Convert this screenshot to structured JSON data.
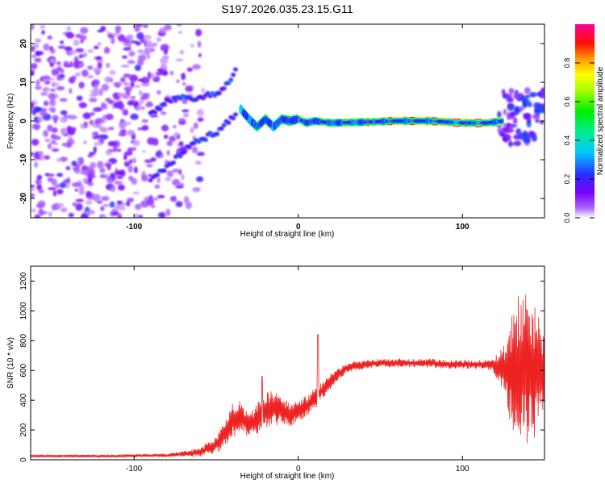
{
  "title": "S197.2026.035.23.15.G11",
  "colors": {
    "snr_line": "#ee2222",
    "axis": "#000000"
  },
  "chart_data": [
    {
      "type": "heatmap",
      "title": "S197.2026.035.23.15.G11",
      "xlabel": "Height of straight line (km)",
      "ylabel": "Frequency (Hz)",
      "xlim": [
        -163,
        150
      ],
      "ylim": [
        -25,
        25
      ],
      "xticks": [
        -100,
        0,
        100
      ],
      "yticks": [
        -20,
        -10,
        0,
        10,
        20
      ],
      "colorbar": {
        "label": "Normalized spectral amplitude",
        "range": [
          0,
          1
        ],
        "ticks": [
          0.0,
          0.2,
          0.4,
          0.6,
          0.8
        ],
        "colormap": [
          "#ffffff",
          "#8800ff",
          "#2222ff",
          "#00ddff",
          "#00ee00",
          "#ffff00",
          "#ff8800",
          "#ff0000",
          "#ff0099"
        ]
      },
      "ridge": {
        "x": [
          -35,
          -30,
          -25,
          -20,
          -15,
          -10,
          -5,
          0,
          5,
          10,
          20,
          40,
          60,
          80,
          100,
          115,
          125
        ],
        "freq": [
          3,
          0.5,
          -1.5,
          0.5,
          -1.5,
          0.5,
          0,
          0.5,
          -0.5,
          0,
          -0.5,
          -0.3,
          0,
          0,
          -0.5,
          -0.5,
          0
        ],
        "amplitude": [
          0.3,
          0.35,
          0.45,
          0.5,
          0.4,
          0.45,
          0.5,
          0.55,
          0.5,
          0.55,
          0.6,
          0.65,
          0.75,
          0.75,
          0.85,
          0.8,
          0.5
        ]
      },
      "branches": {
        "upper": {
          "x": [
            -90,
            -80,
            -70,
            -60,
            -50,
            -42,
            -37
          ],
          "freq": [
            2,
            5,
            6,
            6,
            7,
            10,
            15
          ]
        },
        "lower": {
          "x": [
            -90,
            -80,
            -70,
            -60,
            -50,
            -42,
            -37
          ],
          "freq": [
            -15,
            -12,
            -8,
            -5,
            -3,
            0,
            2
          ]
        }
      }
    },
    {
      "type": "line",
      "xlabel": "Height of straight line (km)",
      "ylabel": "SNR (10 * v/v)",
      "xlim": [
        -163,
        150
      ],
      "ylim": [
        0,
        1300
      ],
      "xticks": [
        -100,
        0,
        100
      ],
      "yticks": [
        0,
        200,
        400,
        600,
        800,
        1000,
        1200
      ],
      "envelope": {
        "x": [
          -163,
          -120,
          -80,
          -60,
          -50,
          -45,
          -40,
          -35,
          -30,
          -25,
          -20,
          -15,
          -10,
          -5,
          0,
          5,
          10,
          15,
          20,
          25,
          30,
          40,
          50,
          60,
          70,
          80,
          90,
          100,
          110,
          118,
          125,
          130,
          135,
          140,
          145,
          150
        ],
        "mean": [
          25,
          25,
          30,
          50,
          100,
          170,
          260,
          300,
          220,
          280,
          330,
          350,
          330,
          300,
          320,
          360,
          410,
          470,
          530,
          580,
          620,
          640,
          650,
          650,
          650,
          650,
          640,
          640,
          640,
          640,
          620,
          600,
          600,
          620,
          600,
          560
        ],
        "spread": [
          8,
          10,
          12,
          30,
          60,
          90,
          120,
          110,
          90,
          110,
          120,
          120,
          100,
          80,
          80,
          80,
          70,
          60,
          50,
          40,
          35,
          30,
          30,
          30,
          30,
          30,
          30,
          30,
          30,
          40,
          150,
          400,
          550,
          550,
          450,
          300
        ]
      },
      "annotations": {
        "spike_at": [
          12,
          840
        ],
        "spike_minor": [
          -22,
          560
        ]
      }
    }
  ]
}
